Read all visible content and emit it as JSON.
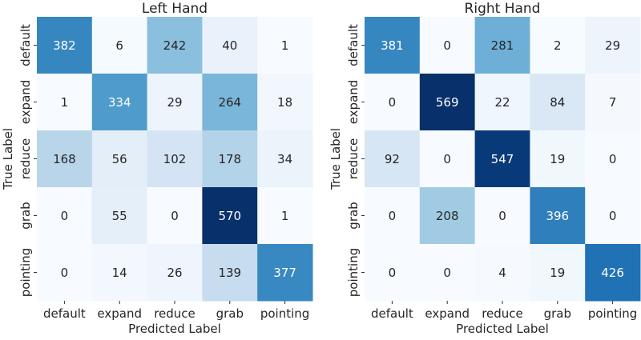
{
  "chart_data": [
    {
      "type": "heatmap",
      "title": "Left Hand",
      "xlabel": "Predicted Label",
      "ylabel": "True Label",
      "x_categories": [
        "default",
        "expand",
        "reduce",
        "grab",
        "pointing"
      ],
      "y_categories": [
        "default",
        "expand",
        "reduce",
        "grab",
        "pointing"
      ],
      "colormap": "Blues",
      "colorbar": false,
      "values": [
        [
          382,
          6,
          242,
          40,
          1
        ],
        [
          1,
          334,
          29,
          264,
          18
        ],
        [
          168,
          56,
          102,
          178,
          34
        ],
        [
          0,
          55,
          0,
          570,
          1
        ],
        [
          0,
          14,
          26,
          139,
          377
        ]
      ]
    },
    {
      "type": "heatmap",
      "title": "Right Hand",
      "xlabel": "Predicted Label",
      "ylabel": "True Label",
      "x_categories": [
        "default",
        "expand",
        "reduce",
        "grab",
        "pointing"
      ],
      "y_categories": [
        "default",
        "expand",
        "reduce",
        "grab",
        "pointing"
      ],
      "colormap": "Blues",
      "colorbar": false,
      "values": [
        [
          381,
          0,
          281,
          2,
          29
        ],
        [
          0,
          569,
          22,
          84,
          7
        ],
        [
          92,
          0,
          547,
          19,
          0
        ],
        [
          0,
          208,
          0,
          396,
          0
        ],
        [
          0,
          0,
          4,
          19,
          426
        ]
      ]
    }
  ]
}
